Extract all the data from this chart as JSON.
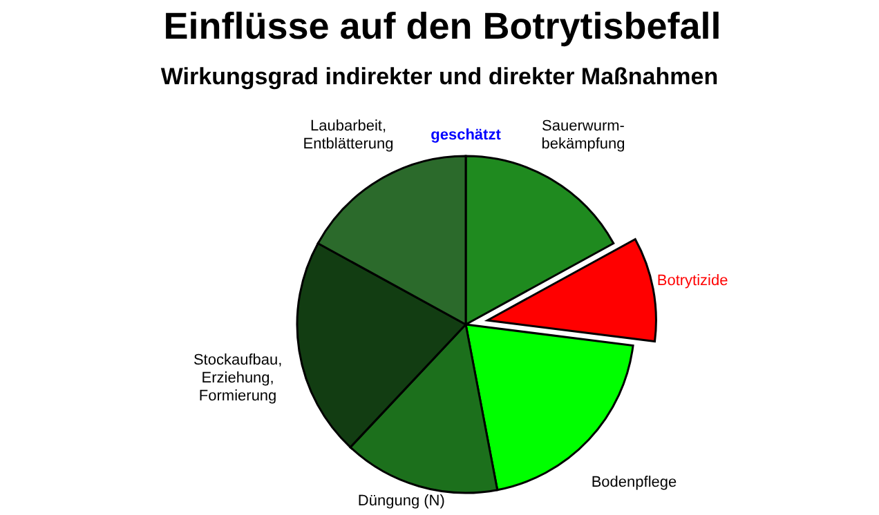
{
  "chart_data": {
    "type": "pie",
    "title": "Einflüsse auf den Botrytisbefall",
    "subtitle": "Wirkungsgrad  indirekter und direkter Maßnahmen",
    "annotations": [
      "geschätzt"
    ],
    "categories": [
      "Sauerwurm-\nbekämpfung",
      "Botrytizide",
      "Bodenpflege",
      "Düngung (N)",
      "Stockaufbau,\nErziehung,\nFormierung",
      "Laubarbeit,\nEntblätterung"
    ],
    "values": [
      17,
      10,
      20,
      15,
      21,
      17
    ],
    "colors": [
      "#1f8a1f",
      "#ff0000",
      "#00ff00",
      "#1c701c",
      "#123d12",
      "#2b6a2b"
    ]
  }
}
